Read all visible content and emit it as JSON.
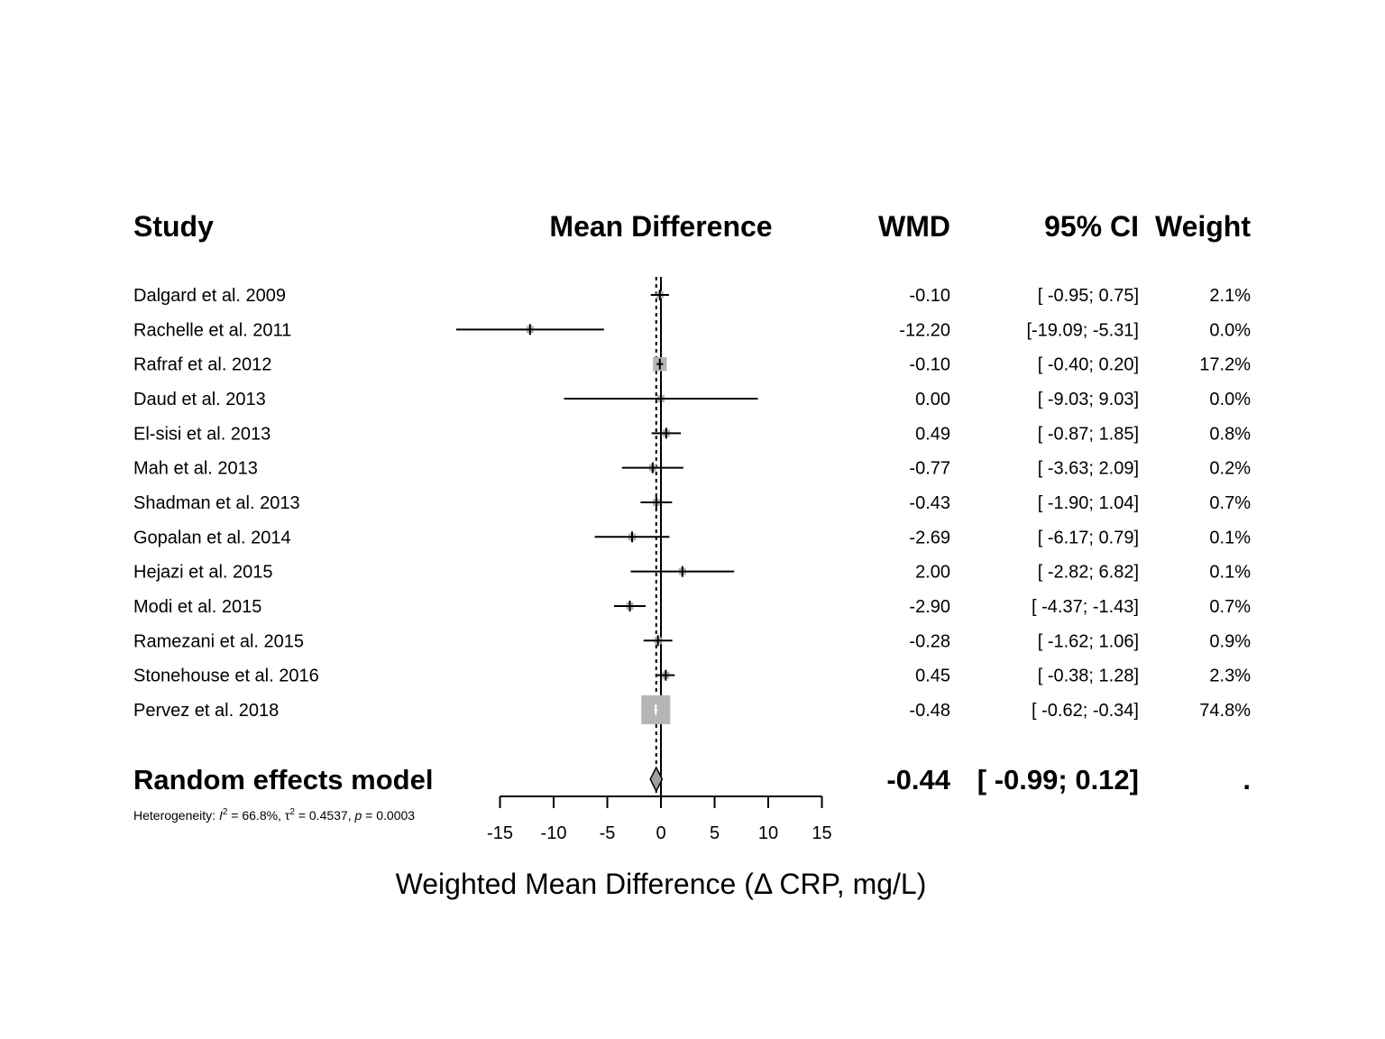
{
  "chart_data": {
    "type": "forest",
    "headers": {
      "study": "Study",
      "effect": "Mean Difference",
      "wmd": "WMD",
      "ci": "95% CI",
      "weight": "Weight"
    },
    "studies": [
      {
        "name": "Dalgard et al. 2009",
        "wmd": -0.1,
        "lower": -0.95,
        "upper": 0.75,
        "wmd_text": "-0.10",
        "ci_text": "[ -0.95;  0.75]",
        "weight_text": "2.1%",
        "weight": 2.1
      },
      {
        "name": "Rachelle et al. 2011",
        "wmd": -12.2,
        "lower": -19.09,
        "upper": -5.31,
        "wmd_text": "-12.20",
        "ci_text": "[-19.09; -5.31]",
        "weight_text": "0.0%",
        "weight": 0.0
      },
      {
        "name": "Rafraf et al. 2012",
        "wmd": -0.1,
        "lower": -0.4,
        "upper": 0.2,
        "wmd_text": "-0.10",
        "ci_text": "[ -0.40;  0.20]",
        "weight_text": "17.2%",
        "weight": 17.2
      },
      {
        "name": "Daud et al. 2013",
        "wmd": 0.0,
        "lower": -9.03,
        "upper": 9.03,
        "wmd_text": "0.00",
        "ci_text": "[ -9.03;  9.03]",
        "weight_text": "0.0%",
        "weight": 0.0
      },
      {
        "name": "El-sisi et al. 2013",
        "wmd": 0.49,
        "lower": -0.87,
        "upper": 1.85,
        "wmd_text": "0.49",
        "ci_text": "[ -0.87;  1.85]",
        "weight_text": "0.8%",
        "weight": 0.8
      },
      {
        "name": "Mah et al. 2013",
        "wmd": -0.77,
        "lower": -3.63,
        "upper": 2.09,
        "wmd_text": "-0.77",
        "ci_text": "[ -3.63;  2.09]",
        "weight_text": "0.2%",
        "weight": 0.2
      },
      {
        "name": "Shadman et al. 2013",
        "wmd": -0.43,
        "lower": -1.9,
        "upper": 1.04,
        "wmd_text": "-0.43",
        "ci_text": "[ -1.90;  1.04]",
        "weight_text": "0.7%",
        "weight": 0.7
      },
      {
        "name": "Gopalan et al. 2014",
        "wmd": -2.69,
        "lower": -6.17,
        "upper": 0.79,
        "wmd_text": "-2.69",
        "ci_text": "[ -6.17;  0.79]",
        "weight_text": "0.1%",
        "weight": 0.1
      },
      {
        "name": "Hejazi et al. 2015",
        "wmd": 2.0,
        "lower": -2.82,
        "upper": 6.82,
        "wmd_text": "2.00",
        "ci_text": "[ -2.82;  6.82]",
        "weight_text": "0.1%",
        "weight": 0.1
      },
      {
        "name": "Modi et al. 2015",
        "wmd": -2.9,
        "lower": -4.37,
        "upper": -1.43,
        "wmd_text": "-2.90",
        "ci_text": "[ -4.37; -1.43]",
        "weight_text": "0.7%",
        "weight": 0.7
      },
      {
        "name": "Ramezani et al. 2015",
        "wmd": -0.28,
        "lower": -1.62,
        "upper": 1.06,
        "wmd_text": "-0.28",
        "ci_text": "[ -1.62;  1.06]",
        "weight_text": "0.9%",
        "weight": 0.9
      },
      {
        "name": "Stonehouse et al. 2016",
        "wmd": 0.45,
        "lower": -0.38,
        "upper": 1.28,
        "wmd_text": "0.45",
        "ci_text": "[ -0.38;  1.28]",
        "weight_text": "2.3%",
        "weight": 2.3
      },
      {
        "name": "Pervez et al. 2018",
        "wmd": -0.48,
        "lower": -0.62,
        "upper": -0.34,
        "wmd_text": "-0.48",
        "ci_text": "[ -0.62; -0.34]",
        "weight_text": "74.8%",
        "weight": 74.8
      }
    ],
    "pooled": {
      "name": "Random effects model",
      "wmd": -0.44,
      "lower": -0.99,
      "upper": 0.12,
      "wmd_text": "-0.44",
      "ci_text": "[ -0.99;  0.12]",
      "weight_text": "."
    },
    "heterogeneity": {
      "prefix": "Heterogeneity: ",
      "i2_symbol": "I",
      "i2_value": " = 66.8%, ",
      "tau_symbol": "τ",
      "tau_value": " = 0.4537, ",
      "p_symbol": "p",
      "p_value": " = 0.0003",
      "sup": "2"
    },
    "x_ticks": [
      -15,
      -10,
      -5,
      0,
      5,
      10,
      15
    ],
    "xlim": [
      -15,
      15
    ],
    "xlabel": "Weighted Mean Difference (Δ CRP, mg/L)",
    "reference_line": 0,
    "colors": {
      "box": "#b5b5b5",
      "diamond": "#a0a0a0",
      "line": "#000000"
    }
  }
}
